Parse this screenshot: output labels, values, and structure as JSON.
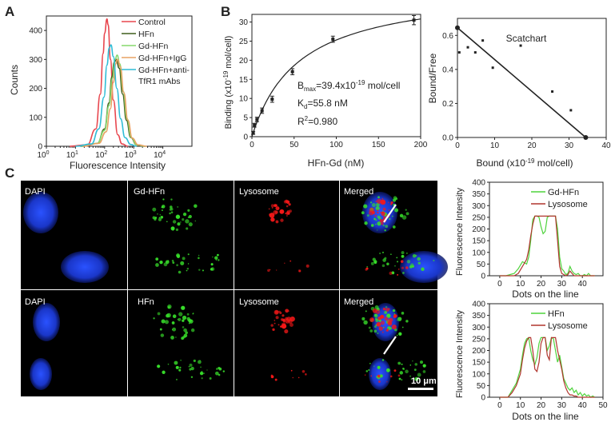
{
  "panel_labels": {
    "a": "A",
    "b": "B",
    "c": "C"
  },
  "colors": {
    "control": "#e8474f",
    "hfn": "#3f5f1c",
    "gd_hfn": "#86d86d",
    "gd_hfn_igg": "#e8a263",
    "gd_hfn_anti": "#2fbcd6",
    "red_line": "#b0352d",
    "green_line": "#4ed33c",
    "dapi": "#1a3ee0",
    "green_dots": "#38e02a",
    "red_dots": "#f51818"
  },
  "chart_data": [
    {
      "id": "A",
      "type": "line",
      "xlabel": "Fluorescence Intensity",
      "ylabel": "Counts",
      "xscale": "log",
      "xlim_log10": [
        0,
        5
      ],
      "ylim": [
        0,
        450
      ],
      "yticks": [
        0,
        100,
        200,
        300,
        400
      ],
      "xtick_labels": [
        "10",
        "10",
        "10",
        "10",
        "10"
      ],
      "xtick_exponents": [
        "0",
        "1",
        "2",
        "3",
        "4"
      ],
      "legend_position": "top-right",
      "series": [
        {
          "name": "Control",
          "color_key": "control",
          "x_log10": [
            0.8,
            1.4,
            1.7,
            1.85,
            1.95,
            2.0,
            2.08,
            2.12,
            2.2,
            2.3,
            2.45,
            2.6,
            2.8
          ],
          "values": [
            0,
            5,
            60,
            180,
            320,
            390,
            440,
            420,
            300,
            160,
            40,
            8,
            0
          ]
        },
        {
          "name": "HFn",
          "color_key": "hfn",
          "x_log10": [
            1.2,
            1.75,
            2.0,
            2.15,
            2.25,
            2.33,
            2.4,
            2.5,
            2.62,
            2.75,
            2.9,
            3.1,
            3.4
          ],
          "values": [
            0,
            10,
            60,
            150,
            240,
            290,
            300,
            270,
            180,
            90,
            30,
            5,
            0
          ]
        },
        {
          "name": "Gd-HFn",
          "color_key": "gd_hfn",
          "x_log10": [
            1.2,
            1.75,
            2.0,
            2.15,
            2.27,
            2.36,
            2.43,
            2.52,
            2.64,
            2.77,
            2.92,
            3.1,
            3.4
          ],
          "values": [
            0,
            10,
            55,
            140,
            235,
            300,
            315,
            285,
            190,
            95,
            30,
            5,
            0
          ]
        },
        {
          "name": "Gd-HFn+IgG",
          "color_key": "gd_hfn_igg",
          "x_log10": [
            1.25,
            1.8,
            2.05,
            2.2,
            2.3,
            2.38,
            2.44,
            2.54,
            2.66,
            2.8,
            2.95,
            3.15,
            3.45
          ],
          "values": [
            0,
            10,
            50,
            130,
            220,
            285,
            300,
            275,
            185,
            90,
            28,
            5,
            0
          ]
        },
        {
          "name": "Gd-HFn+anti-\nTfR1 mAbs",
          "color_key": "gd_hfn_anti",
          "x_log10": [
            1.0,
            1.55,
            1.8,
            1.98,
            2.08,
            2.16,
            2.22,
            2.3,
            2.42,
            2.55,
            2.7,
            2.9,
            3.1
          ],
          "values": [
            0,
            8,
            60,
            170,
            280,
            340,
            350,
            310,
            200,
            95,
            30,
            6,
            0
          ]
        }
      ]
    },
    {
      "id": "B-binding",
      "type": "scatter",
      "xlabel": "HFn-Gd (nM)",
      "ylabel": "Binding (x10",
      "ylabel_exp": "-19",
      "ylabel_tail": " mol/cell)",
      "xlim": [
        0,
        200
      ],
      "ylim": [
        0,
        32
      ],
      "xticks": [
        0,
        50,
        100,
        150,
        200
      ],
      "yticks": [
        0,
        5,
        10,
        15,
        20,
        25,
        30
      ],
      "x": [
        1.5,
        3,
        6,
        12,
        24,
        48,
        96,
        192
      ],
      "values": [
        1.0,
        3.0,
        4.5,
        6.8,
        9.8,
        17.0,
        25.5,
        30.5
      ],
      "errors": [
        0.4,
        0.5,
        0.6,
        0.7,
        0.8,
        0.8,
        0.8,
        1.2
      ],
      "fit": {
        "type": "one-site",
        "bmax": 39.4,
        "kd": 55.8
      },
      "annotation": {
        "bmax_main": "B",
        "bmax_sub": "max",
        "bmax_rest": "=39.4x10",
        "bmax_exp": "-19",
        "bmax_unit": " mol/cell",
        "kd_main": "K",
        "kd_sub": "d",
        "kd_rest": "=55.8 nM",
        "r2_main": "R",
        "r2_sup": "2",
        "r2_rest": "=0.980"
      }
    },
    {
      "id": "B-scatchard",
      "type": "scatter",
      "title": "Scatchart",
      "xlabel": "Bound (x10",
      "xlabel_exp": "-19",
      "xlabel_tail": " mol/cell)",
      "ylabel": "Bound/Free",
      "xlim": [
        0,
        40
      ],
      "ylim": [
        0,
        0.7
      ],
      "xticks": [
        0,
        10,
        20,
        30,
        40
      ],
      "yticks": [
        0,
        0.2,
        0.4,
        0.6
      ],
      "ytick_labels": [
        "0.0",
        "0.2",
        "0.4",
        "0.6"
      ],
      "x": [
        0.5,
        2.8,
        4.8,
        6.8,
        9.5,
        17,
        25.5,
        30.5
      ],
      "values": [
        0.5,
        0.53,
        0.5,
        0.57,
        0.41,
        0.54,
        0.27,
        0.16
      ],
      "fit_line": {
        "x": [
          0,
          34.5
        ],
        "y": [
          0.645,
          0.0
        ]
      },
      "endpoints": {
        "x": [
          0,
          34.5
        ],
        "y": [
          0.645,
          0.0
        ]
      }
    },
    {
      "id": "C-profile-top",
      "type": "line",
      "xlabel": "Dots on the line",
      "ylabel": "Fluorescence Intensity",
      "xlim": [
        -5,
        50
      ],
      "ylim": [
        0,
        400
      ],
      "xticks": [
        0,
        10,
        20,
        30,
        40
      ],
      "yticks": [
        0,
        50,
        100,
        150,
        200,
        250,
        300,
        350,
        400
      ],
      "legend_position": "top-right",
      "series": [
        {
          "name": "Gd-HFn",
          "color_key": "green_line",
          "x": [
            0,
            3,
            5,
            7,
            9,
            11,
            13,
            14,
            15,
            16,
            17,
            18,
            19,
            20,
            21,
            22,
            23,
            24,
            25,
            26,
            27,
            28,
            29,
            30,
            31,
            32,
            33,
            34,
            35,
            36,
            37,
            38,
            39,
            40,
            41,
            42,
            43,
            44,
            45,
            46
          ],
          "values": [
            0,
            0,
            5,
            10,
            30,
            60,
            50,
            80,
            150,
            240,
            255,
            255,
            250,
            210,
            180,
            190,
            250,
            255,
            255,
            255,
            255,
            200,
            80,
            30,
            20,
            5,
            10,
            40,
            20,
            10,
            5,
            10,
            0,
            0,
            5,
            0,
            10,
            0,
            0,
            0
          ]
        },
        {
          "name": "Lysosome",
          "color_key": "red_line",
          "x": [
            0,
            3,
            5,
            7,
            9,
            11,
            13,
            14,
            15,
            16,
            17,
            18,
            19,
            20,
            21,
            22,
            23,
            24,
            25,
            26,
            27,
            28,
            29,
            30,
            31,
            32,
            33,
            34,
            35,
            36,
            37,
            38,
            39,
            40,
            41,
            42,
            43,
            44,
            45,
            46
          ],
          "values": [
            0,
            0,
            0,
            0,
            10,
            40,
            70,
            110,
            170,
            220,
            255,
            255,
            255,
            255,
            255,
            255,
            255,
            255,
            255,
            255,
            255,
            150,
            40,
            10,
            5,
            0,
            5,
            20,
            10,
            0,
            0,
            0,
            0,
            0,
            0,
            0,
            0,
            0,
            0,
            0
          ]
        }
      ]
    },
    {
      "id": "C-profile-bottom",
      "type": "line",
      "xlabel": "Dots on the line",
      "ylabel": "Fluorescence Intensity",
      "xlim": [
        -5,
        50
      ],
      "ylim": [
        0,
        400
      ],
      "xticks": [
        0,
        10,
        20,
        30,
        40,
        50
      ],
      "yticks": [
        0,
        50,
        100,
        150,
        200,
        250,
        300,
        350,
        400
      ],
      "legend_position": "top-right",
      "series": [
        {
          "name": "HFn",
          "color_key": "green_line",
          "x": [
            0,
            2,
            4,
            6,
            8,
            10,
            11,
            12,
            13,
            14,
            15,
            16,
            17,
            18,
            19,
            20,
            21,
            22,
            23,
            24,
            25,
            26,
            27,
            28,
            29,
            30,
            31,
            32,
            33,
            34,
            35,
            36,
            37,
            38,
            39,
            40,
            41,
            42,
            43,
            44,
            45,
            46
          ],
          "values": [
            0,
            0,
            0,
            30,
            60,
            120,
            180,
            230,
            250,
            255,
            200,
            160,
            140,
            170,
            230,
            255,
            255,
            255,
            200,
            220,
            255,
            250,
            200,
            150,
            180,
            130,
            80,
            60,
            40,
            30,
            40,
            20,
            30,
            10,
            20,
            5,
            15,
            5,
            10,
            0,
            5,
            0
          ]
        },
        {
          "name": "Lysosome",
          "color_key": "red_line",
          "x": [
            0,
            2,
            4,
            6,
            8,
            10,
            11,
            12,
            13,
            14,
            15,
            16,
            17,
            18,
            19,
            20,
            21,
            22,
            23,
            24,
            25,
            26,
            27,
            28,
            29,
            30,
            31,
            32,
            33,
            34,
            35,
            36,
            37,
            38,
            39,
            40,
            41,
            42,
            43,
            44,
            45,
            46
          ],
          "values": [
            0,
            0,
            0,
            20,
            50,
            100,
            160,
            210,
            240,
            255,
            255,
            200,
            120,
            110,
            150,
            230,
            255,
            255,
            180,
            160,
            255,
            255,
            255,
            200,
            160,
            120,
            70,
            40,
            20,
            10,
            10,
            5,
            5,
            0,
            0,
            0,
            0,
            0,
            0,
            0,
            0,
            0
          ]
        }
      ]
    }
  ],
  "microscopy": {
    "top_row": {
      "col1": "DAPI",
      "col2": "Gd-HFn",
      "col3": "Lysosome",
      "col4": "Merged"
    },
    "bottom_row": {
      "col1": "DAPI",
      "col2": "HFn",
      "col3": "Lysosome",
      "col4": "Merged"
    },
    "scale_bar_label": "10 μm"
  }
}
